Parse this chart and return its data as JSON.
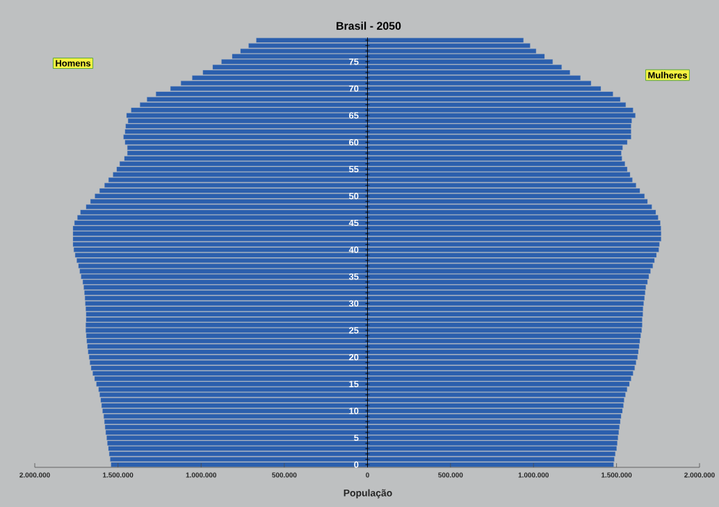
{
  "chart_data": [
    {
      "type": "bar",
      "orientation": "horizontal",
      "title": "Brasil - 2050",
      "xlabel": "População",
      "categories": [
        null,
        null,
        null,
        null,
        "75",
        null,
        null,
        null,
        null,
        "70",
        null,
        null,
        null,
        null,
        "65",
        null,
        null,
        null,
        null,
        "60",
        null,
        null,
        null,
        null,
        "55",
        null,
        null,
        null,
        null,
        "50",
        null,
        null,
        null,
        null,
        "45",
        null,
        null,
        null,
        null,
        "40",
        null,
        null,
        null,
        null,
        "35",
        null,
        null,
        null,
        null,
        "30",
        null,
        null,
        null,
        null,
        "25",
        null,
        null,
        null,
        null,
        "20",
        null,
        null,
        null,
        null,
        "15",
        null,
        null,
        null,
        null,
        "10",
        null,
        null,
        null,
        null,
        "5",
        null,
        null,
        null,
        null,
        "0"
      ],
      "series": [
        {
          "name": "Homens",
          "color": "#2b5fad",
          "values": [
            668000,
            714000,
            763000,
            813000,
            877000,
            930000,
            989000,
            1053000,
            1121000,
            1184000,
            1271000,
            1325000,
            1367000,
            1420000,
            1448000,
            1439000,
            1453000,
            1457000,
            1466000,
            1457000,
            1443000,
            1443000,
            1461000,
            1489000,
            1507000,
            1529000,
            1556000,
            1580000,
            1610000,
            1638000,
            1665000,
            1691000,
            1725000,
            1743000,
            1761000,
            1770000,
            1770000,
            1770000,
            1770000,
            1765000,
            1757000,
            1747000,
            1737000,
            1729000,
            1721000,
            1711000,
            1705000,
            1701000,
            1698000,
            1696000,
            1693000,
            1691000,
            1691000,
            1693000,
            1693000,
            1690000,
            1687000,
            1683000,
            1679000,
            1673000,
            1668000,
            1661000,
            1651000,
            1640000,
            1629000,
            1616000,
            1609000,
            1603000,
            1598000,
            1592000,
            1585000,
            1581000,
            1577000,
            1573000,
            1567000,
            1563000,
            1557000,
            1552000,
            1546000,
            1541000
          ]
        }
      ],
      "xlim": [
        2000000,
        0
      ],
      "xticks": [
        {
          "value": 2000000,
          "label": "2.000.000"
        },
        {
          "value": 1500000,
          "label": "1.500.000"
        },
        {
          "value": 1000000,
          "label": "1.000.000"
        },
        {
          "value": 500000,
          "label": "500.000"
        }
      ]
    },
    {
      "type": "bar",
      "orientation": "horizontal",
      "tick_labels": "x",
      "categories": [
        null,
        null,
        null,
        null,
        "75",
        null,
        null,
        null,
        null,
        "70",
        null,
        null,
        null,
        null,
        "65",
        null,
        null,
        null,
        null,
        "60",
        null,
        null,
        null,
        null,
        "55",
        null,
        null,
        null,
        null,
        "50",
        null,
        null,
        null,
        null,
        "45",
        null,
        null,
        null,
        null,
        "40",
        null,
        null,
        null,
        null,
        "35",
        null,
        null,
        null,
        null,
        "30",
        null,
        null,
        null,
        null,
        "25",
        null,
        null,
        null,
        null,
        "20",
        null,
        null,
        null,
        null,
        "15",
        null,
        null,
        null,
        null,
        "10",
        null,
        null,
        null,
        null,
        "5",
        null,
        null,
        null,
        null,
        "0"
      ],
      "series": [
        {
          "name": "Mulheres",
          "color": "#2b5fad",
          "values": [
            939000,
            979000,
            1015000,
            1066000,
            1115000,
            1169000,
            1219000,
            1282000,
            1346000,
            1405000,
            1478000,
            1522000,
            1555000,
            1599000,
            1613000,
            1591000,
            1587000,
            1587000,
            1587000,
            1564000,
            1536000,
            1528000,
            1532000,
            1550000,
            1564000,
            1581000,
            1595000,
            1617000,
            1640000,
            1668000,
            1686000,
            1712000,
            1736000,
            1750000,
            1763000,
            1767000,
            1768000,
            1768000,
            1758000,
            1754000,
            1740000,
            1728000,
            1718000,
            1704000,
            1694000,
            1686000,
            1676000,
            1672000,
            1668000,
            1663000,
            1659000,
            1658000,
            1654000,
            1654000,
            1651000,
            1645000,
            1640000,
            1636000,
            1631000,
            1626000,
            1617000,
            1609000,
            1599000,
            1587000,
            1577000,
            1563000,
            1553000,
            1545000,
            1541000,
            1535000,
            1527000,
            1522000,
            1517000,
            1513000,
            1508000,
            1504000,
            1500000,
            1492000,
            1486000,
            1482000
          ]
        }
      ],
      "xlim": [
        0,
        2000000
      ],
      "xticks": [
        0,
        {
          "value": 500000,
          "label": "500.000"
        },
        {
          "value": 1000000,
          "label": "1.000.000"
        },
        {
          "value": 1500000,
          "label": "1.500.000"
        },
        {
          "value": 2000000,
          "label": "2.000.000"
        }
      ]
    }
  ]
}
